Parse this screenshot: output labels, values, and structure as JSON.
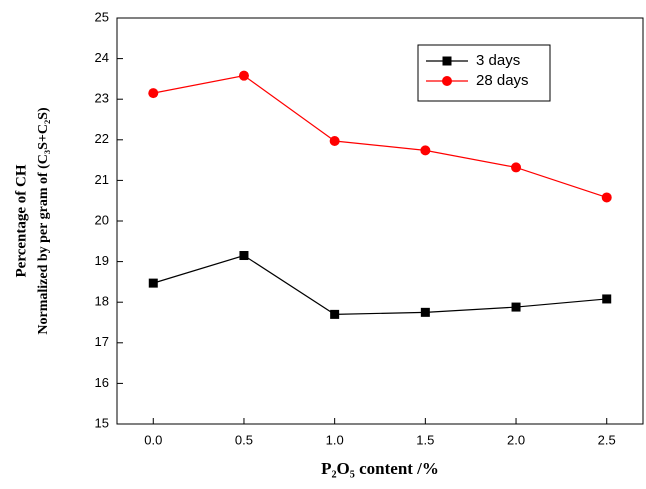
{
  "chart_data": {
    "type": "line",
    "xlabel": "P₂O₅ content /%",
    "ylabel": [
      "Percentage of CH",
      "Normalized by per gram of (C₃S+C₂S)"
    ],
    "x": [
      0,
      0.5,
      1.0,
      1.5,
      2.0,
      2.5
    ],
    "series": [
      {
        "name": "3 days",
        "color": "#000000",
        "marker": "square",
        "values": [
          18.47,
          19.15,
          17.7,
          17.75,
          17.88,
          18.08
        ]
      },
      {
        "name": "28 days",
        "color": "#ff0000",
        "marker": "circle",
        "values": [
          23.15,
          23.58,
          21.97,
          21.74,
          21.32,
          20.58
        ]
      }
    ],
    "xlim": [
      -0.2,
      2.7
    ],
    "xticks": [
      {
        "value": 0,
        "label": "0.0"
      },
      0.5,
      {
        "value": 1,
        "label": "1.0"
      },
      1.5,
      {
        "value": 2,
        "label": "2.0"
      },
      2.5
    ],
    "ylim": [
      15,
      25
    ],
    "yticks": [
      15,
      16,
      17,
      18,
      19,
      20,
      21,
      22,
      23,
      24,
      25
    ],
    "grid": false,
    "legend": "upper right"
  }
}
